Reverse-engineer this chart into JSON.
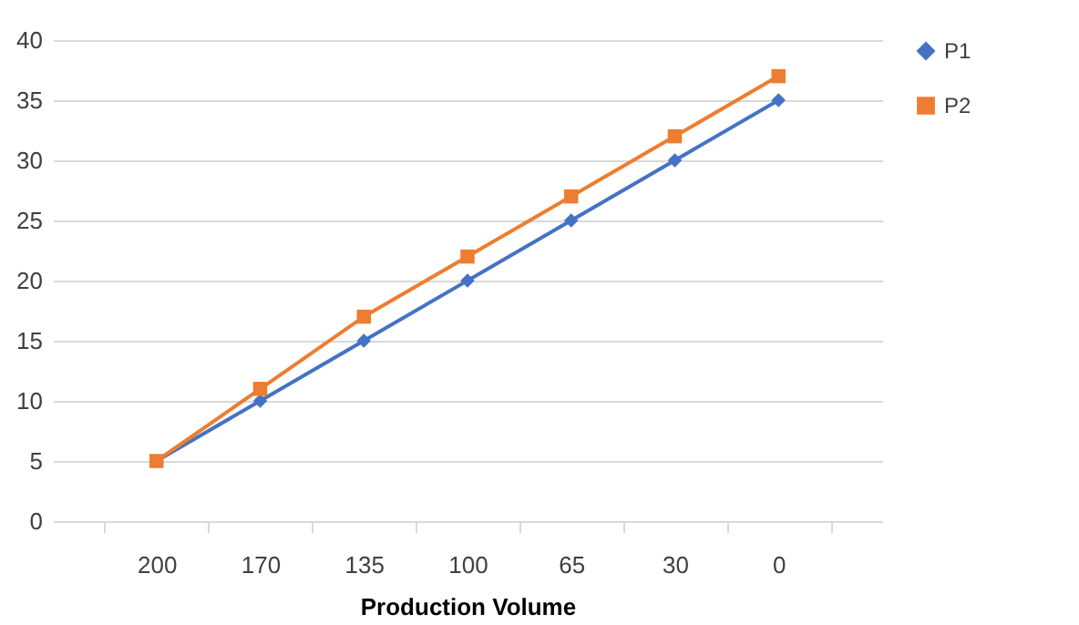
{
  "chart_data": {
    "type": "line",
    "xlabel": "Production Volume",
    "categories": [
      "200",
      "170",
      "135",
      "100",
      "65",
      "30",
      "0"
    ],
    "series": [
      {
        "name": "P1",
        "color": "#4472c4",
        "marker": "diamond",
        "values": [
          5,
          10,
          15,
          20,
          25,
          30,
          35
        ]
      },
      {
        "name": "P2",
        "color": "#ed7d31",
        "marker": "square",
        "values": [
          5,
          11,
          17,
          22,
          27,
          32,
          37
        ]
      }
    ],
    "ylim": [
      0,
      40
    ],
    "yticks": [
      0,
      5,
      10,
      15,
      20,
      25,
      30,
      35,
      40
    ],
    "grid": "y",
    "legend": "right",
    "line_style": "solid"
  }
}
